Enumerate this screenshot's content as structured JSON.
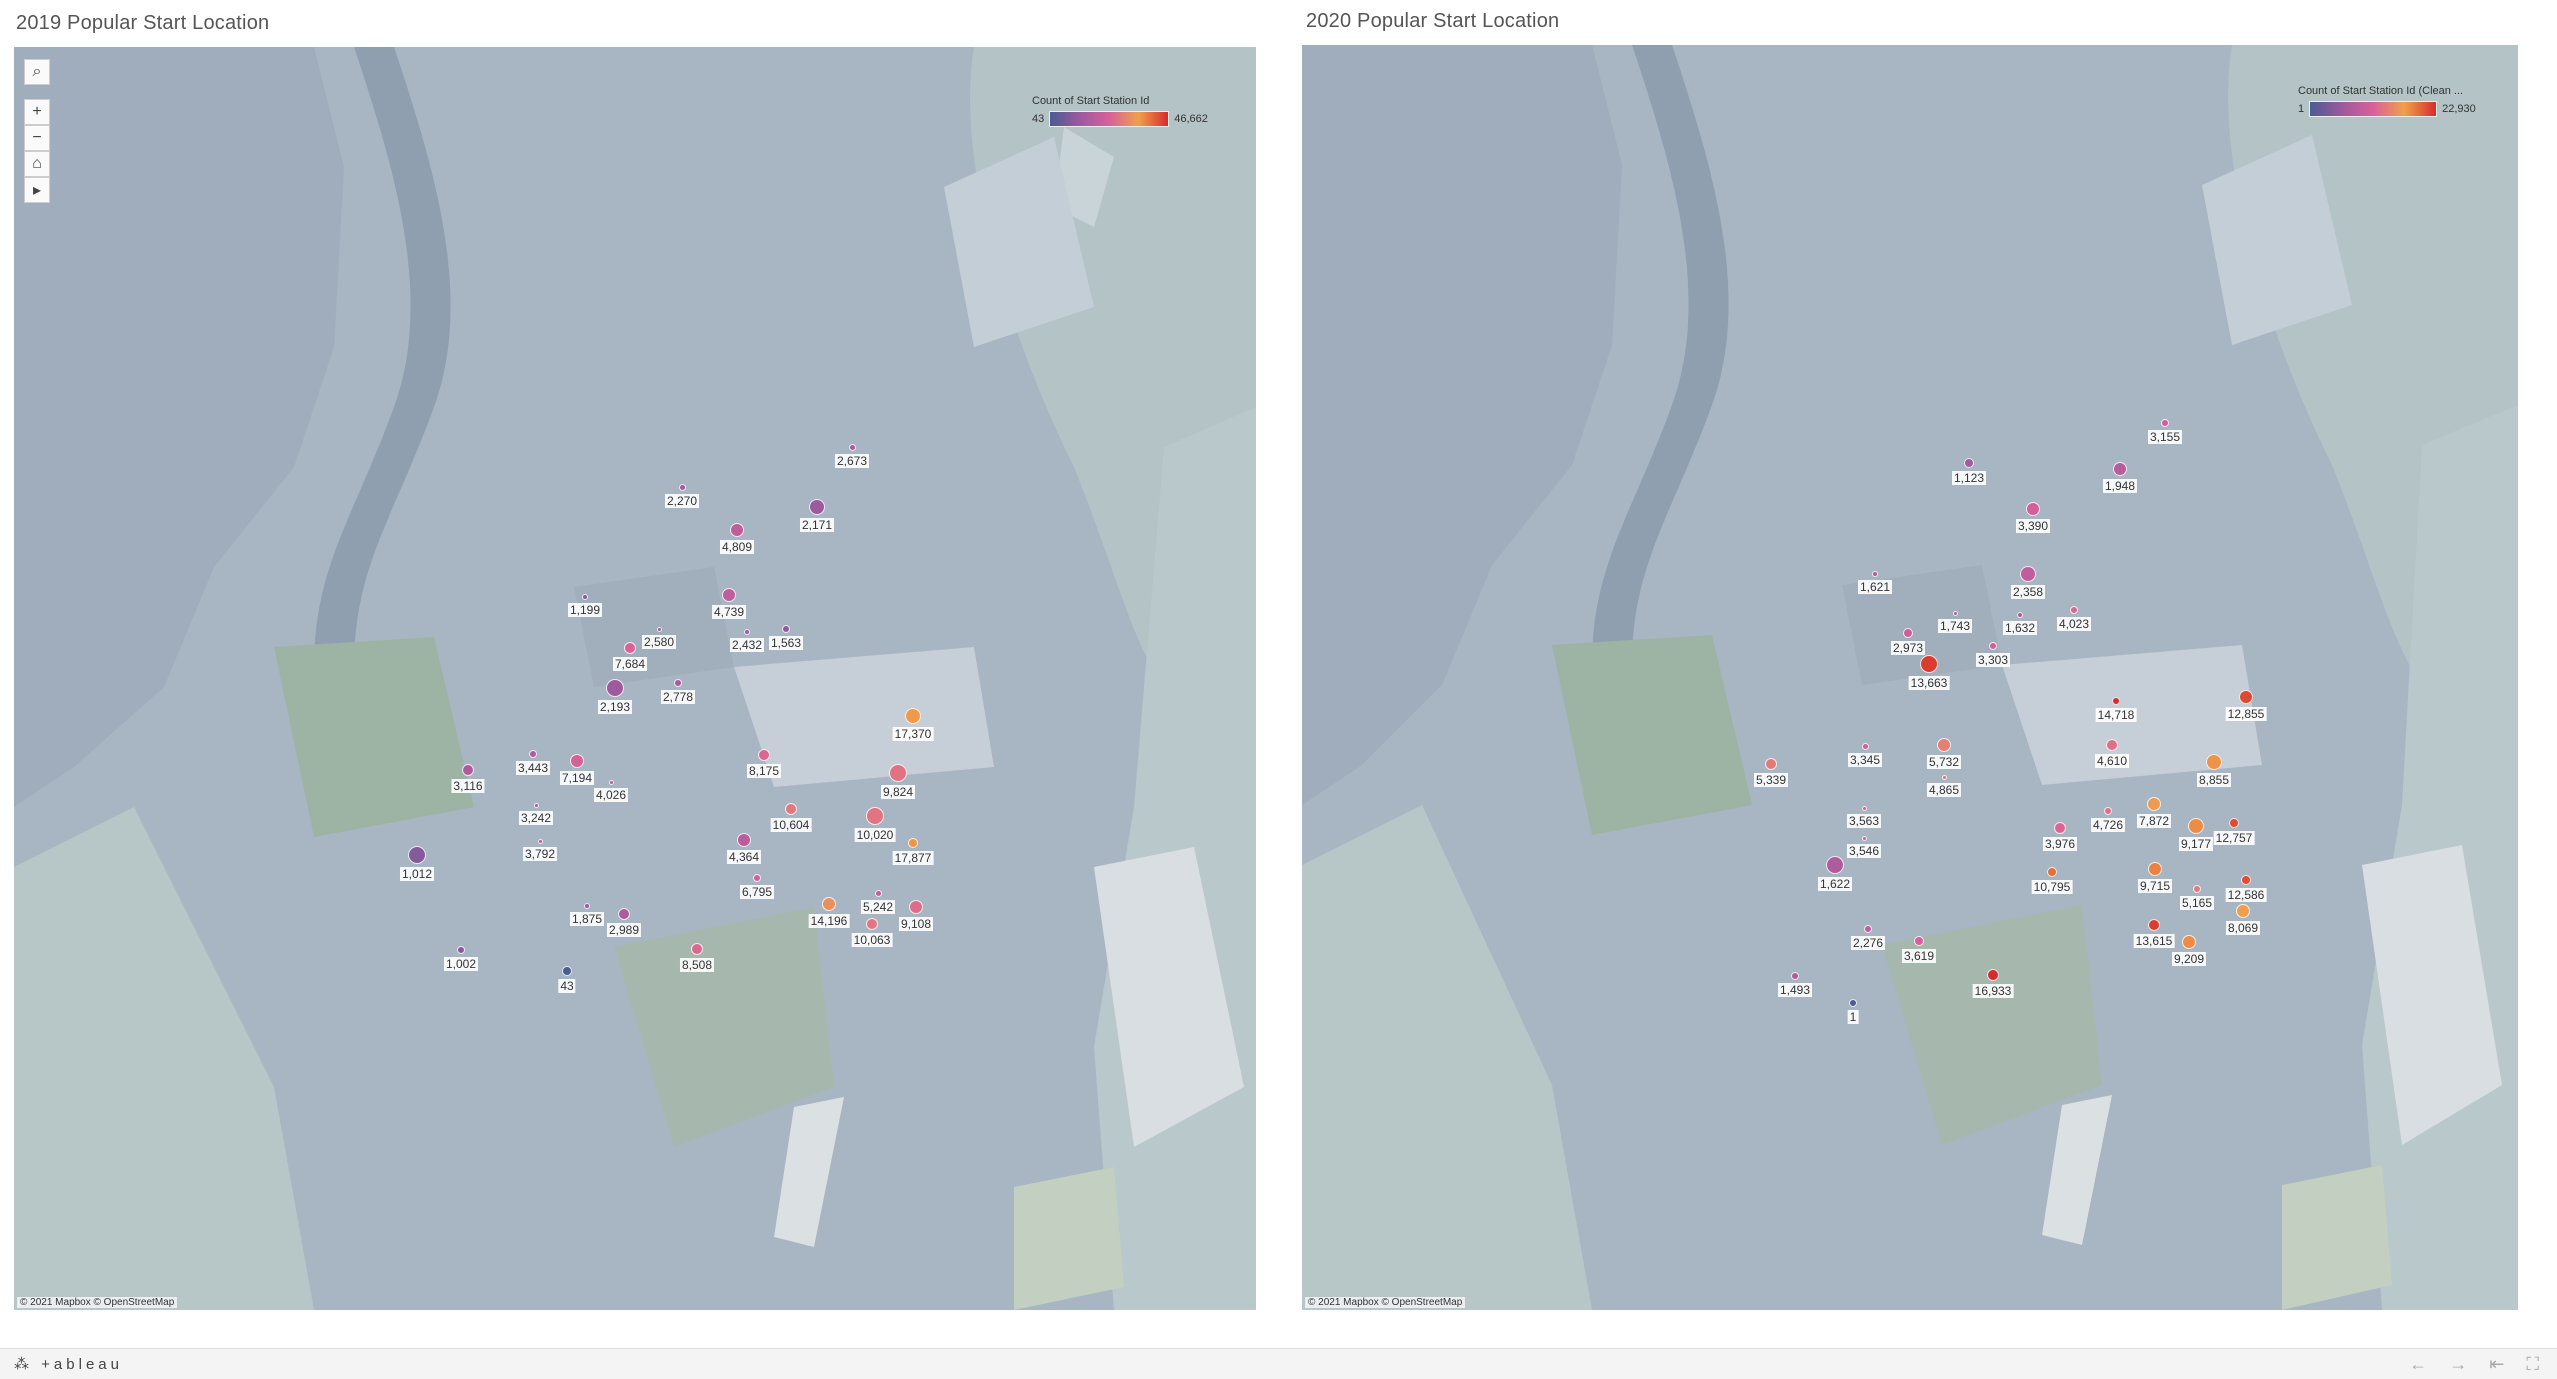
{
  "toolbar": {
    "logo": "⁂ +ableau",
    "undo_icon": "←",
    "redo_icon": "→",
    "revert_icon": "⇤",
    "fullscreen_icon": "⛶"
  },
  "attribution": "© 2021 Mapbox  © OpenStreetMap",
  "map_tools": {
    "search": "⌕",
    "zoom_in": "+",
    "zoom_out": "−",
    "home": "⌂",
    "expand": "▸"
  },
  "colors": {
    "low": "#4b5b94",
    "mid_low": "#9a5a9e",
    "mid": "#d8609a",
    "mid_high": "#f0a04b",
    "high": "#d62c2c"
  },
  "chart_data": [
    {
      "type": "map",
      "title": "2019 Popular Start Location",
      "legend": {
        "title": "Count of Start Station Id",
        "min_label": "43",
        "max_label": "46,662",
        "min": 43,
        "max": 46662
      },
      "points": [
        {
          "label": "2,673",
          "value": 2673
        },
        {
          "label": "2,270",
          "value": 2270
        },
        {
          "label": "2,171",
          "value": 2171
        },
        {
          "label": "4,809",
          "value": 4809
        },
        {
          "label": "1,199",
          "value": 1199
        },
        {
          "label": "4,739",
          "value": 4739
        },
        {
          "label": "2,580",
          "value": 2580
        },
        {
          "label": "2,432",
          "value": 2432
        },
        {
          "label": "1,563",
          "value": 1563
        },
        {
          "label": "7,684",
          "value": 7684
        },
        {
          "label": "2,778",
          "value": 2778
        },
        {
          "label": "2,193",
          "value": 2193
        },
        {
          "label": "3,116",
          "value": 3116
        },
        {
          "label": "3,443",
          "value": 3443
        },
        {
          "label": "7,194",
          "value": 7194
        },
        {
          "label": "4,026",
          "value": 4026
        },
        {
          "label": "8,175",
          "value": 8175
        },
        {
          "label": "17,370",
          "value": 17370
        },
        {
          "label": "9,824",
          "value": 9824
        },
        {
          "label": "3,242",
          "value": 3242
        },
        {
          "label": "10,604",
          "value": 10604
        },
        {
          "label": "10,020",
          "value": 10020
        },
        {
          "label": "3,792",
          "value": 3792
        },
        {
          "label": "4,364",
          "value": 4364
        },
        {
          "label": "17,877",
          "value": 17877
        },
        {
          "label": "1,012",
          "value": 1012
        },
        {
          "label": "6,795",
          "value": 6795
        },
        {
          "label": "5,242",
          "value": 5242
        },
        {
          "label": "1,875",
          "value": 1875
        },
        {
          "label": "2,989",
          "value": 2989
        },
        {
          "label": "14,196",
          "value": 14196
        },
        {
          "label": "9,108",
          "value": 9108
        },
        {
          "label": "10,063",
          "value": 10063
        },
        {
          "label": "1,002",
          "value": 1002
        },
        {
          "label": "8,508",
          "value": 8508
        },
        {
          "label": "43",
          "value": 43
        }
      ]
    },
    {
      "type": "map",
      "title": "2020 Popular Start Location",
      "legend": {
        "title": "Count of Start Station Id (Clean ...",
        "min_label": "1",
        "max_label": "22,930",
        "min": 1,
        "max": 22930
      },
      "points": [
        {
          "label": "3,155",
          "value": 3155
        },
        {
          "label": "1,123",
          "value": 1123
        },
        {
          "label": "1,948",
          "value": 1948
        },
        {
          "label": "3,390",
          "value": 3390
        },
        {
          "label": "1,621",
          "value": 1621
        },
        {
          "label": "2,358",
          "value": 2358
        },
        {
          "label": "1,743",
          "value": 1743
        },
        {
          "label": "1,632",
          "value": 1632
        },
        {
          "label": "4,023",
          "value": 4023
        },
        {
          "label": "2,973",
          "value": 2973
        },
        {
          "label": "3,303",
          "value": 3303
        },
        {
          "label": "13,663",
          "value": 13663
        },
        {
          "label": "14,718",
          "value": 14718
        },
        {
          "label": "12,855",
          "value": 12855
        },
        {
          "label": "5,339",
          "value": 5339
        },
        {
          "label": "3,345",
          "value": 3345
        },
        {
          "label": "5,732",
          "value": 5732
        },
        {
          "label": "4,610",
          "value": 4610
        },
        {
          "label": "8,855",
          "value": 8855
        },
        {
          "label": "4,865",
          "value": 4865
        },
        {
          "label": "3,563",
          "value": 3563
        },
        {
          "label": "4,726",
          "value": 4726
        },
        {
          "label": "7,872",
          "value": 7872
        },
        {
          "label": "9,177",
          "value": 9177
        },
        {
          "label": "3,546",
          "value": 3546
        },
        {
          "label": "3,976",
          "value": 3976
        },
        {
          "label": "12,757",
          "value": 12757
        },
        {
          "label": "1,622",
          "value": 1622
        },
        {
          "label": "9,715",
          "value": 9715
        },
        {
          "label": "12,586",
          "value": 12586
        },
        {
          "label": "10,795",
          "value": 10795
        },
        {
          "label": "5,165",
          "value": 5165
        },
        {
          "label": "2,276",
          "value": 2276
        },
        {
          "label": "13,615",
          "value": 13615
        },
        {
          "label": "8,069",
          "value": 8069
        },
        {
          "label": "3,619",
          "value": 3619
        },
        {
          "label": "9,209",
          "value": 9209
        },
        {
          "label": "1,493",
          "value": 1493
        },
        {
          "label": "16,933",
          "value": 16933
        },
        {
          "label": "1",
          "value": 1
        }
      ]
    }
  ]
}
